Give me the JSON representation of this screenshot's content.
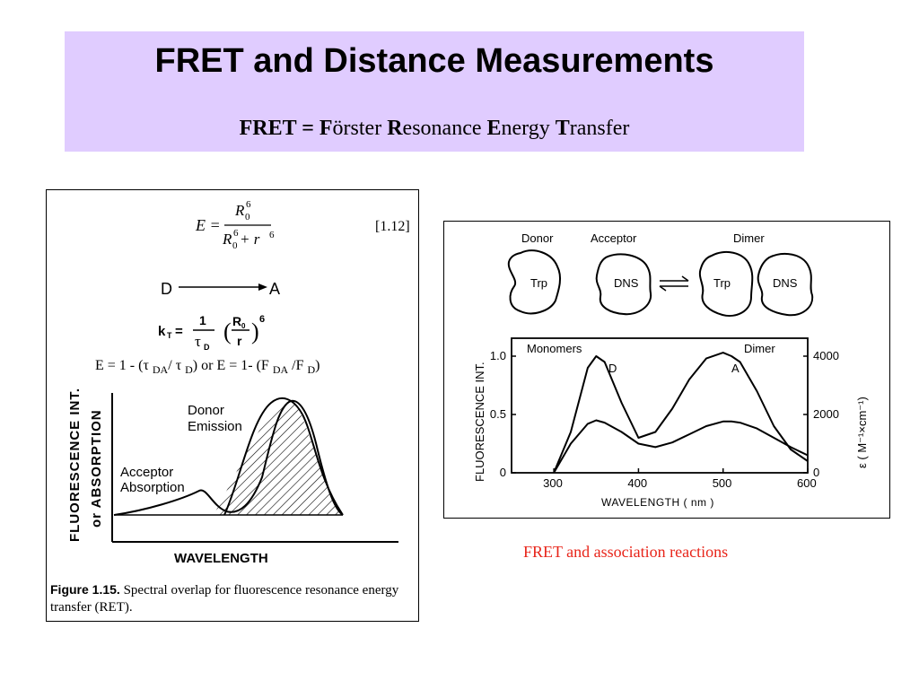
{
  "slide": {
    "title": "FRET and Distance Measurements",
    "subtitle_parts": [
      {
        "text": "FRET = ",
        "bold": true
      },
      {
        "text": "F",
        "bold": true
      },
      {
        "text": "örster ",
        "bold": false
      },
      {
        "text": "R",
        "bold": true
      },
      {
        "text": "esonance ",
        "bold": false
      },
      {
        "text": "E",
        "bold": true
      },
      {
        "text": "nergy ",
        "bold": false
      },
      {
        "text": "T",
        "bold": true
      },
      {
        "text": "ransfer",
        "bold": false
      }
    ]
  },
  "left_figure": {
    "eq_E": "E =",
    "eq_num": "R",
    "eq_den_a": "R",
    "eq_den_plus": " + r",
    "sub0": "0",
    "sup6": "6",
    "eq_ref": "[1.12]",
    "d_label": "D",
    "a_label": "A",
    "kt_label": "k",
    "kt_sub": "T",
    "kt_eq": "=",
    "kt_one": "1",
    "kt_tau": "τ",
    "kt_tau_sub": "D",
    "kt_r0": "R",
    "kt_r0_sub": "0",
    "kt_r": "r",
    "kt_exp": "6",
    "efficiency_line_parts": [
      {
        "text": "E = 1 - (",
        "sub": false
      },
      {
        "text": "τ ",
        "sub": false
      },
      {
        "text": "DA",
        "sub": true
      },
      {
        "text": "/ ",
        "sub": false
      },
      {
        "text": "τ ",
        "sub": false
      },
      {
        "text": "D",
        "sub": true
      },
      {
        "text": ")  or  E =  1- (F ",
        "sub": false
      },
      {
        "text": "DA",
        "sub": true
      },
      {
        "text": " /F ",
        "sub": false
      },
      {
        "text": "D",
        "sub": true
      },
      {
        "text": ")",
        "sub": false
      }
    ],
    "y_label_1": "FLUORESCENCE INT.",
    "y_label_2": "or ABSORPTION",
    "x_label": "WAVELENGTH",
    "donor_label_1": "Donor",
    "donor_label_2": "Emission",
    "acceptor_label_1": "Acceptor",
    "acceptor_label_2": "Absorption",
    "caption_head": "Figure 1.15.",
    "caption_body": "Spectral overlap for fluorescence resonance energy transfer (RET)."
  },
  "right_figure": {
    "donor": "Donor",
    "acceptor": "Acceptor",
    "dimer": "Dimer",
    "trp": "Trp",
    "dns": "DNS",
    "monomers_label": "Monomers",
    "dimer_label": "Dimer",
    "peak_d": "D",
    "peak_a": "A",
    "y_label": "FLUORESCENCE  INT.",
    "y2_label": "ε ( M⁻¹×cm⁻¹)",
    "x_label": "WAVELENGTH  ( nm )",
    "x_ticks": [
      "300",
      "400",
      "500",
      "600"
    ],
    "y_ticks": [
      "0",
      "0.5",
      "1.0"
    ],
    "y2_ticks": [
      "0",
      "2000",
      "4000"
    ],
    "caption": "FRET and association reactions"
  },
  "chart_data": {
    "type": "line",
    "x": [
      300,
      320,
      340,
      350,
      360,
      380,
      400,
      420,
      440,
      460,
      480,
      500,
      510,
      520,
      540,
      560,
      580,
      600
    ],
    "series": [
      {
        "values": [
          0,
          0.35,
          0.9,
          1.0,
          0.95,
          0.6,
          0.3,
          0.35,
          0.55,
          0.8,
          0.98,
          1.03,
          1.0,
          0.95,
          0.7,
          0.4,
          0.2,
          0.1
        ]
      },
      {
        "values": [
          0,
          0.25,
          0.42,
          0.45,
          0.43,
          0.35,
          0.25,
          0.22,
          0.26,
          0.33,
          0.4,
          0.44,
          0.44,
          0.43,
          0.38,
          0.3,
          0.22,
          0.15
        ]
      }
    ],
    "xlabel": "WAVELENGTH  ( nm )",
    "ylabel": "FLUORESCENCE  INT.",
    "xlim": [
      300,
      600
    ],
    "ylim": [
      0,
      1.0
    ]
  }
}
